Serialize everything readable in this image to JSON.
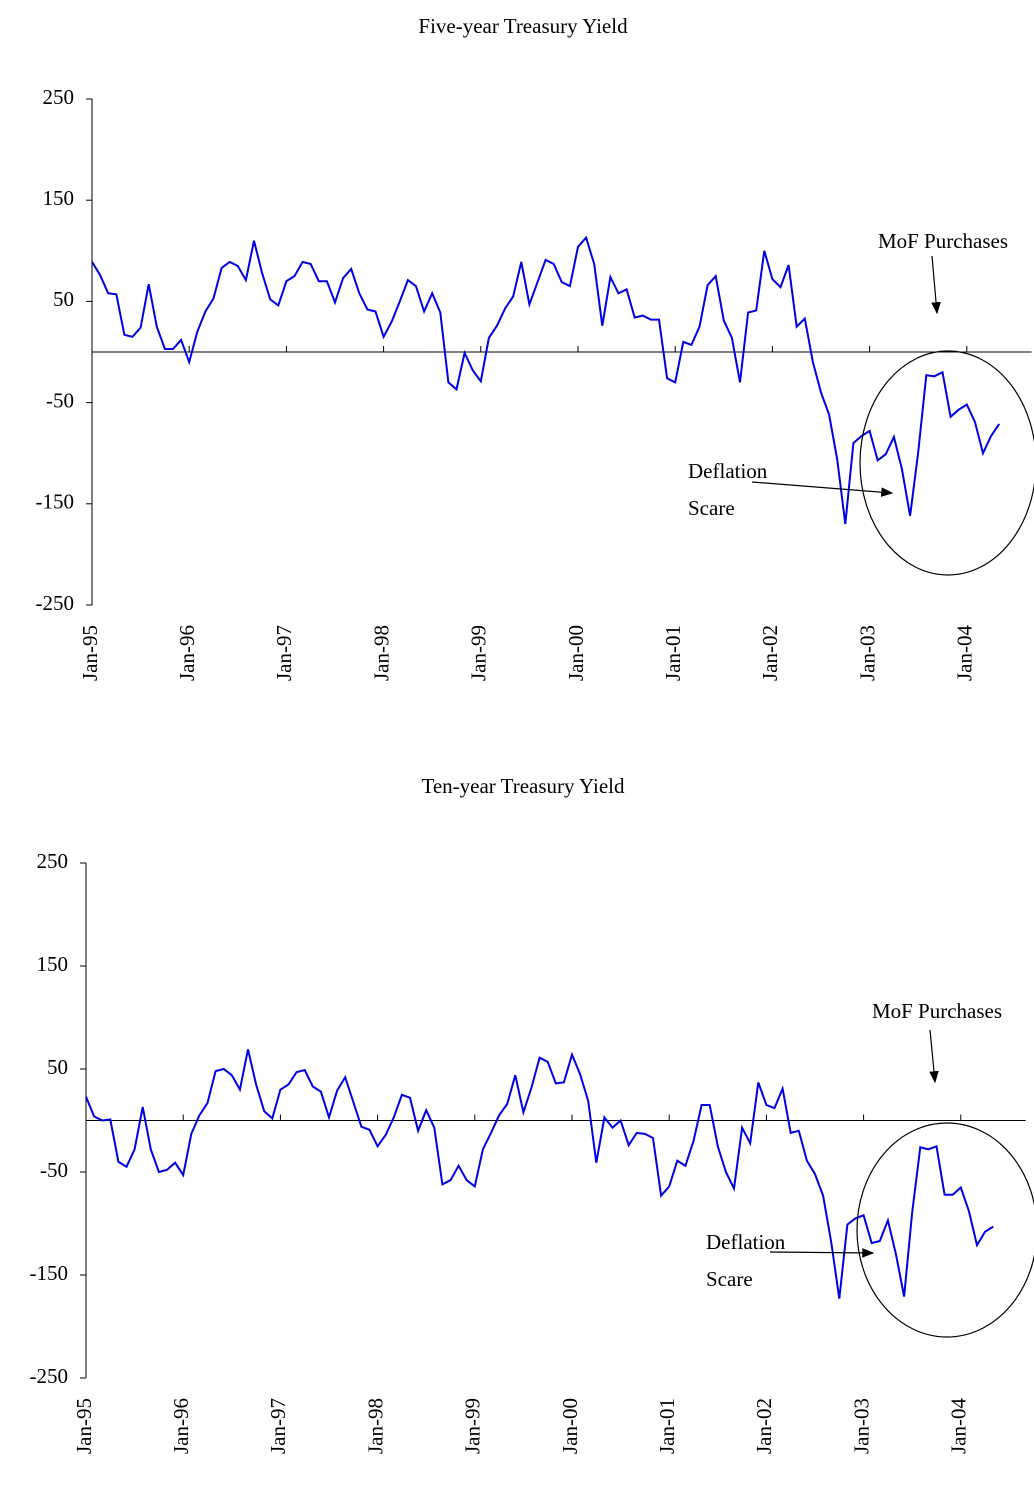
{
  "chart_data": [
    {
      "type": "line",
      "title": "Five-year Treasury Yield",
      "categories": [
        "Jan-95",
        null,
        null,
        null,
        null,
        null,
        null,
        null,
        null,
        null,
        null,
        null,
        "Jan-96",
        null,
        null,
        null,
        null,
        null,
        null,
        null,
        null,
        null,
        null,
        null,
        "Jan-97",
        null,
        null,
        null,
        null,
        null,
        null,
        null,
        null,
        null,
        null,
        null,
        "Jan-98",
        null,
        null,
        null,
        null,
        null,
        null,
        null,
        null,
        null,
        null,
        null,
        "Jan-99",
        null,
        null,
        null,
        null,
        null,
        null,
        null,
        null,
        null,
        null,
        null,
        "Jan-00",
        null,
        null,
        null,
        null,
        null,
        null,
        null,
        null,
        null,
        null,
        null,
        "Jan-01",
        null,
        null,
        null,
        null,
        null,
        null,
        null,
        null,
        null,
        null,
        null,
        "Jan-02",
        null,
        null,
        null,
        null,
        null,
        null,
        null,
        null,
        null,
        null,
        null,
        "Jan-03",
        null,
        null,
        null,
        null,
        null,
        null,
        null,
        null,
        null,
        null,
        null,
        "Jan-04",
        null,
        null,
        null,
        null
      ],
      "values": [
        89,
        76,
        58,
        57,
        17,
        15,
        24,
        67,
        25,
        3,
        3,
        12,
        -10,
        20,
        40,
        53,
        83,
        89,
        85,
        71,
        110,
        78,
        52,
        46,
        70,
        75,
        89,
        87,
        70,
        70,
        49,
        73,
        82,
        58,
        42,
        40,
        15,
        30,
        50,
        71,
        65,
        40,
        58,
        39,
        -30,
        -37,
        -1,
        -18,
        -29,
        14,
        26,
        43,
        55,
        89,
        47,
        69,
        91,
        87,
        69,
        65,
        104,
        113,
        87,
        26,
        74,
        58,
        62,
        34,
        36,
        32,
        32,
        -26,
        -30,
        10,
        7,
        25,
        66,
        75,
        31,
        14,
        -30,
        39,
        41,
        100,
        72,
        64,
        86,
        25,
        33,
        -10,
        -40,
        -62,
        -106,
        -170,
        -90,
        -83,
        -78,
        -107,
        -101,
        -84,
        -116,
        -162,
        -99,
        -23,
        -24,
        -20,
        -64,
        -57,
        -52,
        -69,
        -100,
        -83,
        -71
      ],
      "color": "#0000e6",
      "ylim": [
        -250,
        250
      ],
      "yticks": [
        -250,
        -150,
        -50,
        50,
        150,
        250
      ],
      "annotations": [
        "MoF Purchases",
        "Deflation",
        "Scare"
      ]
    },
    {
      "type": "line",
      "title": "Ten-year Treasury Yield",
      "categories": [
        "Jan-95",
        null,
        null,
        null,
        null,
        null,
        null,
        null,
        null,
        null,
        null,
        null,
        "Jan-96",
        null,
        null,
        null,
        null,
        null,
        null,
        null,
        null,
        null,
        null,
        null,
        "Jan-97",
        null,
        null,
        null,
        null,
        null,
        null,
        null,
        null,
        null,
        null,
        null,
        "Jan-98",
        null,
        null,
        null,
        null,
        null,
        null,
        null,
        null,
        null,
        null,
        null,
        "Jan-99",
        null,
        null,
        null,
        null,
        null,
        null,
        null,
        null,
        null,
        null,
        null,
        "Jan-00",
        null,
        null,
        null,
        null,
        null,
        null,
        null,
        null,
        null,
        null,
        null,
        "Jan-01",
        null,
        null,
        null,
        null,
        null,
        null,
        null,
        null,
        null,
        null,
        null,
        "Jan-02",
        null,
        null,
        null,
        null,
        null,
        null,
        null,
        null,
        null,
        null,
        null,
        "Jan-03",
        null,
        null,
        null,
        null,
        null,
        null,
        null,
        null,
        null,
        null,
        null,
        "Jan-04",
        null,
        null,
        null,
        null
      ],
      "values": [
        23,
        4,
        0,
        1,
        -40,
        -45,
        -28,
        13,
        -28,
        -50,
        -48,
        -41,
        -53,
        -13,
        5,
        17,
        48,
        50,
        44,
        30,
        69,
        35,
        9,
        2,
        30,
        35,
        47,
        49,
        33,
        28,
        3,
        29,
        42,
        18,
        -6,
        -9,
        -25,
        -14,
        3,
        25,
        22,
        -10,
        10,
        -7,
        -62,
        -58,
        -44,
        -58,
        -64,
        -28,
        -12,
        5,
        16,
        44,
        8,
        32,
        61,
        57,
        36,
        37,
        64,
        45,
        19,
        -41,
        3,
        -7,
        0,
        -24,
        -12,
        -13,
        -17,
        -73,
        -64,
        -39,
        -44,
        -20,
        15,
        15,
        -25,
        -50,
        -66,
        -7,
        -22,
        37,
        15,
        12,
        31,
        -12,
        -10,
        -39,
        -52,
        -73,
        -118,
        -173,
        -101,
        -95,
        -92,
        -119,
        -117,
        -97,
        -130,
        -171,
        -89,
        -26,
        -28,
        -25,
        -72,
        -72,
        -65,
        -88,
        -121,
        -108,
        -103
      ],
      "color": "#0000e6",
      "ylim": [
        -250,
        250
      ],
      "yticks": [
        -250,
        -150,
        -50,
        50,
        150,
        250
      ],
      "annotations": [
        "MoF Purchases",
        "Deflation",
        "Scare"
      ]
    }
  ]
}
